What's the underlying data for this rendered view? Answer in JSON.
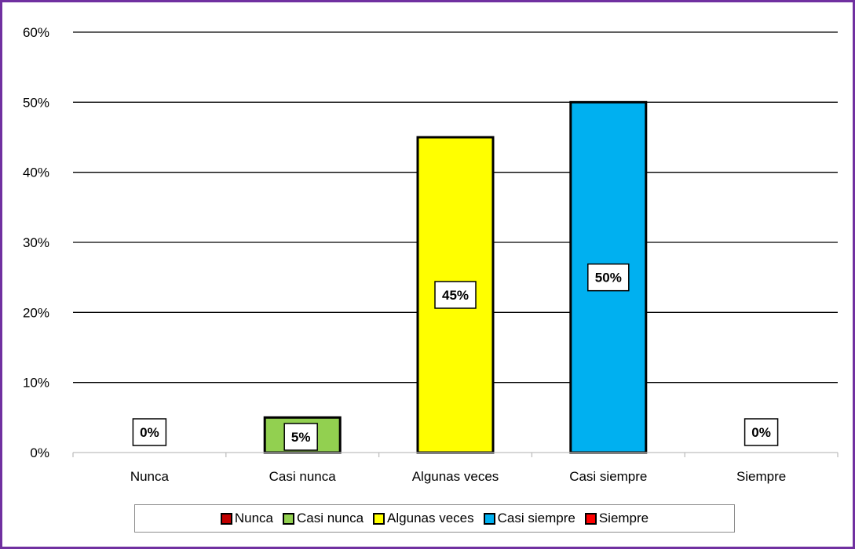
{
  "chart_data": {
    "type": "bar",
    "title": "",
    "xlabel": "",
    "ylabel": "",
    "categories": [
      "Nunca",
      "Casi nunca",
      "Algunas veces",
      "Casi siempre",
      "Siempre"
    ],
    "values": [
      0,
      5,
      45,
      50,
      0
    ],
    "data_labels": [
      "0%",
      "5%",
      "45%",
      "50%",
      "0%"
    ],
    "colors": [
      "#c00000",
      "#92d050",
      "#ffff00",
      "#00b0f0",
      "#ff0000"
    ],
    "ylim": [
      0,
      60
    ],
    "yticks": [
      0,
      10,
      20,
      30,
      40,
      50,
      60
    ],
    "ytick_labels": [
      "0%",
      "10%",
      "20%",
      "30%",
      "40%",
      "50%",
      "60%"
    ],
    "grid": true,
    "legend": {
      "placement": "bottom",
      "entries": [
        "Nunca",
        "Casi nunca",
        "Algunas veces",
        "Casi siempre",
        "Siempre"
      ]
    },
    "frame_color": "#7030a0"
  }
}
